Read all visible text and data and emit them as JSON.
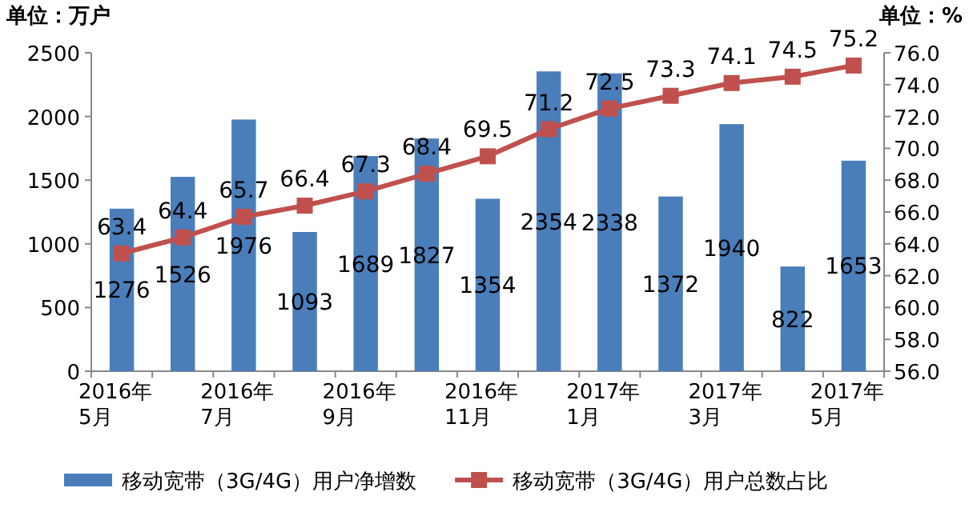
{
  "chart_data": {
    "type": "bar",
    "title": "单位：万户",
    "subtitle": "单位：%",
    "categories": [
      "2016年\n5月",
      null,
      "2016年\n7月",
      null,
      "2016年\n9月",
      null,
      "2016年\n11月",
      null,
      "2017年\n1月",
      null,
      "2017年\n3月",
      null,
      "2017年\n5月"
    ],
    "series": [
      {
        "name": "移动宽带（3G/4G）用户净增数",
        "color": "#4a7ebb",
        "values": [
          1276,
          1526,
          1976,
          1093,
          1689,
          1827,
          1354,
          2354,
          2338,
          1372,
          1940,
          822,
          1653
        ]
      },
      {
        "name": "移动宽带（3G/4G）用户总数占比",
        "type": "line",
        "axis": "y2",
        "color": "#c0504d",
        "marker": "square",
        "values": [
          63.4,
          64.4,
          65.7,
          66.4,
          67.3,
          68.4,
          69.5,
          71.2,
          72.5,
          73.3,
          74.1,
          74.5,
          75.2
        ]
      }
    ],
    "ylim": [
      0,
      2500
    ],
    "yticks": [
      0,
      500,
      1000,
      1500,
      2000,
      2500
    ],
    "y2lim": [
      56,
      76
    ],
    "y2ticks": [
      {
        "value": 56,
        "label": "56.0"
      },
      {
        "value": 58,
        "label": "58.0"
      },
      {
        "value": 60,
        "label": "60.0"
      },
      {
        "value": 62,
        "label": "62.0"
      },
      {
        "value": 64,
        "label": "64.0"
      },
      {
        "value": 66,
        "label": "66.0"
      },
      {
        "value": 68,
        "label": "68.0"
      },
      {
        "value": 70,
        "label": "70.0"
      },
      {
        "value": 72,
        "label": "72.0"
      },
      {
        "value": 74,
        "label": "74.0"
      },
      {
        "value": 76,
        "label": "76.0"
      }
    ],
    "data_labels": true,
    "legend": "bottom",
    "grid": false
  }
}
